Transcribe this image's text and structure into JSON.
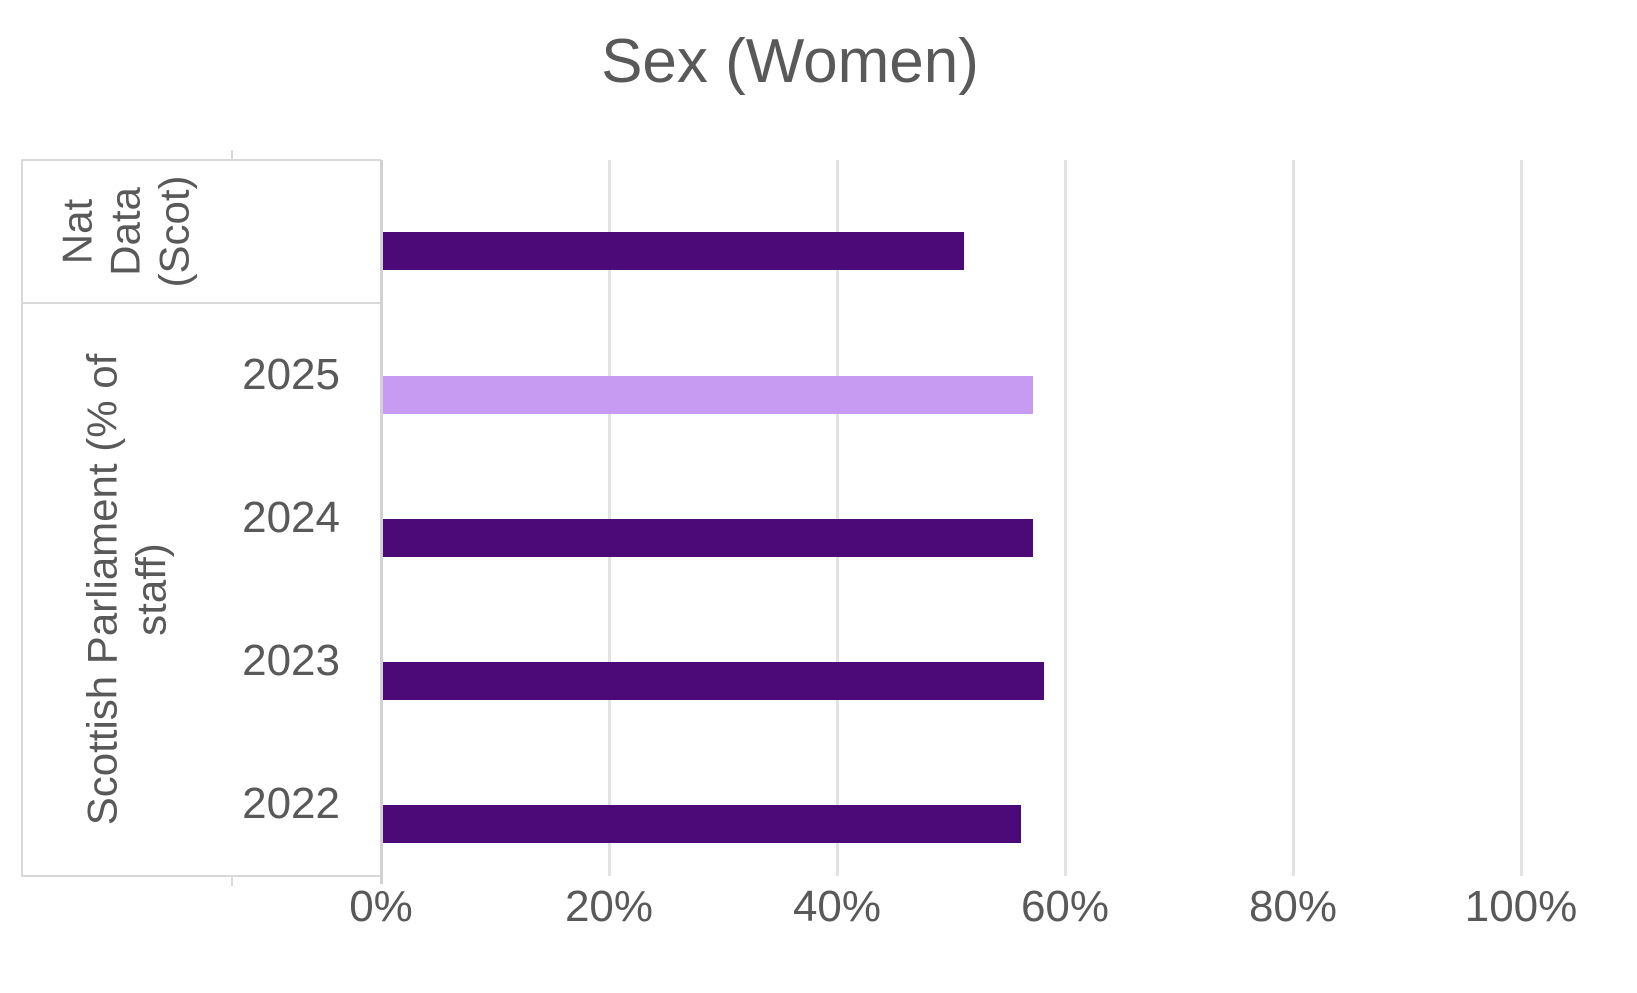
{
  "title": "Sex (Women)",
  "colors": {
    "bar_dark": "#4B0A77",
    "bar_light": "#C89BF2",
    "text": "#595959",
    "gridline": "#E3E3E3",
    "axis_line": "#D2D2D2",
    "box_border": "#D9D9D9",
    "background": "#FFFFFF"
  },
  "chart_data": {
    "type": "bar",
    "orientation": "horizontal",
    "title": "Sex (Women)",
    "xlabel": "",
    "ylabel": "",
    "xlim": [
      0,
      100
    ],
    "x_ticks": [
      "0%",
      "20%",
      "40%",
      "60%",
      "80%",
      "100%"
    ],
    "x_tick_values": [
      0,
      20,
      40,
      60,
      80,
      100
    ],
    "grid": true,
    "legend": false,
    "groups": [
      {
        "label": "Nat Data (Scot)",
        "label_lines": [
          "Nat",
          "Data",
          "(Scot)"
        ],
        "rows": [
          {
            "label": "",
            "value": 51,
            "color": "dark"
          }
        ]
      },
      {
        "label": "Scottish Parliament (% of staff)",
        "label_lines": [
          "Scottish Parliament (% of",
          "staff)"
        ],
        "rows": [
          {
            "label": "2025",
            "value": 57,
            "color": "light"
          },
          {
            "label": "2024",
            "value": 57,
            "color": "dark"
          },
          {
            "label": "2023",
            "value": 58,
            "color": "dark"
          },
          {
            "label": "2022",
            "value": 56,
            "color": "dark"
          }
        ]
      }
    ]
  }
}
